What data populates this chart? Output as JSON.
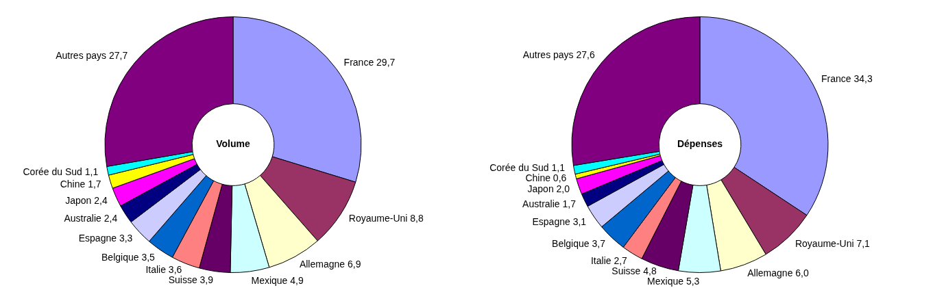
{
  "chart_data": [
    {
      "type": "donut",
      "title": "Volume",
      "categories": [
        "France",
        "Royaume-Uni",
        "Allemagne",
        "Mexique",
        "Suisse",
        "Italie",
        "Belgique",
        "Espagne",
        "Australie",
        "Japon",
        "Chine",
        "Corée du Sud",
        "Autres pays"
      ],
      "values": [
        29.7,
        8.8,
        6.9,
        4.9,
        3.9,
        3.6,
        3.5,
        3.3,
        2.4,
        2.4,
        1.7,
        1.1,
        27.7
      ],
      "value_labels": [
        "29,7",
        "8,8",
        "6,9",
        "4,9",
        "3,9",
        "3,6",
        "3,5",
        "3,3",
        "2,4",
        "2,4",
        "1,7",
        "1,1",
        "27,7"
      ],
      "colors": [
        "#9999ff",
        "#993366",
        "#ffffcc",
        "#ccffff",
        "#660066",
        "#ff8080",
        "#0066cc",
        "#ccccff",
        "#000080",
        "#ff00ff",
        "#ffff00",
        "#00ffff",
        "#800080"
      ]
    },
    {
      "type": "donut",
      "title": "Dépenses",
      "categories": [
        "France",
        "Royaume-Uni",
        "Allemagne",
        "Mexique",
        "Suisse",
        "Italie",
        "Belgique",
        "Espagne",
        "Australie",
        "Japon",
        "Chine",
        "Corée du Sud",
        "Autres pays"
      ],
      "values": [
        34.3,
        7.1,
        6.0,
        5.3,
        4.8,
        2.7,
        3.7,
        3.1,
        1.7,
        2.0,
        0.6,
        1.1,
        27.6
      ],
      "value_labels": [
        "34,3",
        "7,1",
        "6,0",
        "5,3",
        "4,8",
        "2,7",
        "3,7",
        "3,1",
        "1,7",
        "2,0",
        "0,6",
        "1,1",
        "27,6"
      ],
      "colors": [
        "#9999ff",
        "#993366",
        "#ffffcc",
        "#ccffff",
        "#660066",
        "#ff8080",
        "#0066cc",
        "#ccccff",
        "#000080",
        "#ff00ff",
        "#ffff00",
        "#00ffff",
        "#800080"
      ]
    }
  ]
}
